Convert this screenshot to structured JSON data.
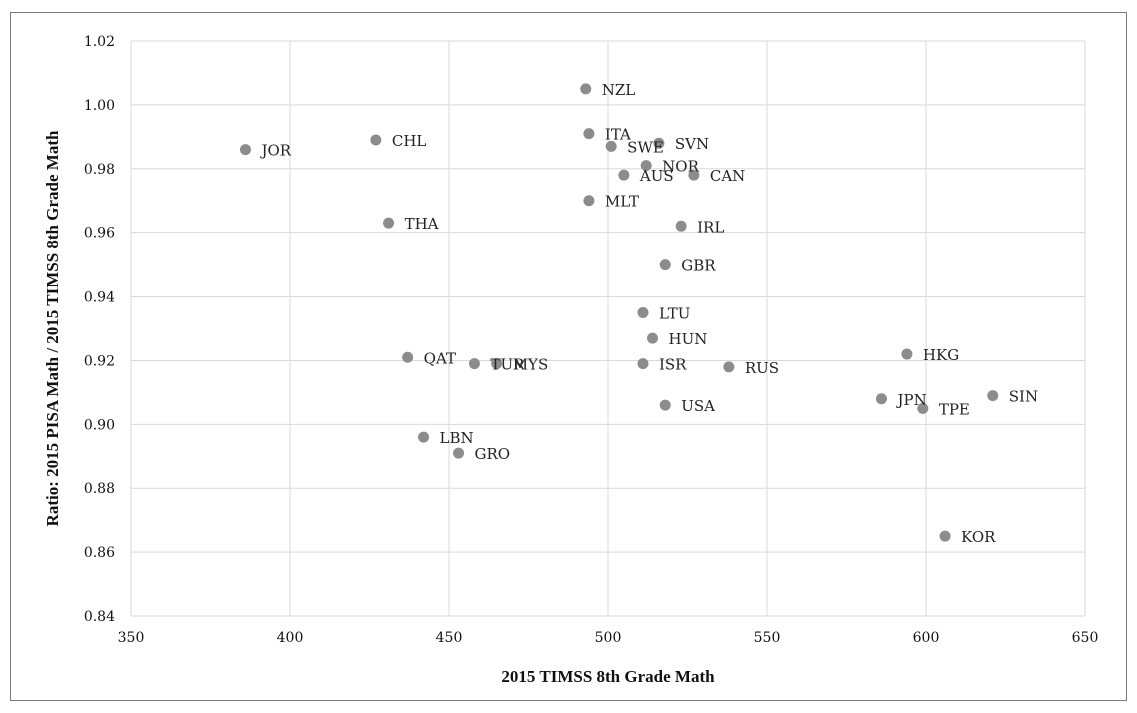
{
  "chart_data": {
    "type": "scatter",
    "title": "",
    "xlabel": "2015 TIMSS 8th Grade Math",
    "ylabel": "Ratio: 2015 PISA Math / 2015 TIMSS 8th Grade Math",
    "xlim": [
      350,
      650
    ],
    "ylim": [
      0.84,
      1.02
    ],
    "xticks": [
      "350",
      "400",
      "450",
      "500",
      "550",
      "600",
      "650"
    ],
    "yticks": [
      "0.84",
      "0.86",
      "0.88",
      "0.90",
      "0.92",
      "0.94",
      "0.96",
      "0.98",
      "1.00",
      "1.02"
    ],
    "grid": true,
    "point_color": "#8c8c8c",
    "points": [
      {
        "label": "JOR",
        "x": 386,
        "y": 0.986
      },
      {
        "label": "CHL",
        "x": 427,
        "y": 0.989
      },
      {
        "label": "THA",
        "x": 431,
        "y": 0.963
      },
      {
        "label": "NZL",
        "x": 493,
        "y": 1.005
      },
      {
        "label": "ITA",
        "x": 494,
        "y": 0.991
      },
      {
        "label": "SWE",
        "x": 501,
        "y": 0.987
      },
      {
        "label": "SVN",
        "x": 516,
        "y": 0.988
      },
      {
        "label": "NOR",
        "x": 512,
        "y": 0.981
      },
      {
        "label": "AUS",
        "x": 505,
        "y": 0.978
      },
      {
        "label": "CAN",
        "x": 527,
        "y": 0.978
      },
      {
        "label": "MLT",
        "x": 494,
        "y": 0.97
      },
      {
        "label": "IRL",
        "x": 523,
        "y": 0.962
      },
      {
        "label": "GBR",
        "x": 518,
        "y": 0.95
      },
      {
        "label": "LTU",
        "x": 511,
        "y": 0.935
      },
      {
        "label": "HUN",
        "x": 514,
        "y": 0.927
      },
      {
        "label": "QAT",
        "x": 437,
        "y": 0.921
      },
      {
        "label": "TUR",
        "x": 458,
        "y": 0.919
      },
      {
        "label": "MYS",
        "x": 465,
        "y": 0.919
      },
      {
        "label": "ISR",
        "x": 511,
        "y": 0.919
      },
      {
        "label": "RUS",
        "x": 538,
        "y": 0.918
      },
      {
        "label": "HKG",
        "x": 594,
        "y": 0.922
      },
      {
        "label": "USA",
        "x": 518,
        "y": 0.906
      },
      {
        "label": "JPN",
        "x": 586,
        "y": 0.908
      },
      {
        "label": "TPE",
        "x": 599,
        "y": 0.905
      },
      {
        "label": "SIN",
        "x": 621,
        "y": 0.909
      },
      {
        "label": "LBN",
        "x": 442,
        "y": 0.896
      },
      {
        "label": "GRO",
        "x": 453,
        "y": 0.891
      },
      {
        "label": "KOR",
        "x": 606,
        "y": 0.865
      }
    ]
  }
}
